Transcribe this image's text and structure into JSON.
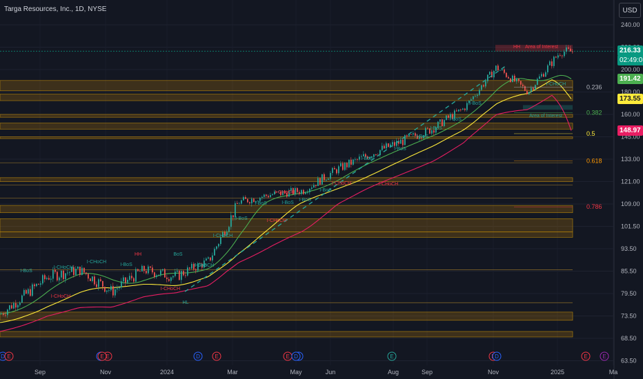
{
  "header": {
    "title": "Targa Resources, Inc., 1D, NYSE",
    "currency_button": "USD"
  },
  "price_tags": [
    {
      "label": "216.33",
      "sub": "02:49:05",
      "color": "#089981",
      "value": 216.33
    },
    {
      "label": "191.42",
      "color": "#4caf50",
      "value": 191.42
    },
    {
      "label": "173.55",
      "color": "#ffeb3b",
      "value": 173.55,
      "text_color": "#131722"
    },
    {
      "label": "148.97",
      "color": "#e91e63",
      "value": 148.97
    }
  ],
  "chart_data": {
    "type": "candlestick",
    "title": "",
    "x_ticks": [
      "Sep",
      "Nov",
      "2024",
      "Mar",
      "May",
      "Jun",
      "Aug",
      "Sep",
      "Nov",
      "2025",
      "Ma"
    ],
    "y_ticks": [
      "240.00",
      "220.00",
      "200.00",
      "180.00",
      "160.00",
      "145.00",
      "133.00",
      "121.00",
      "109.00",
      "101.50",
      "93.50",
      "85.50",
      "79.50",
      "73.50",
      "68.50",
      "63.50"
    ],
    "y_range": [
      63.5,
      240
    ],
    "close_series": [
      {
        "date": "2023-08",
        "value": 77
      },
      {
        "date": "2023-09",
        "value": 84
      },
      {
        "date": "2023-10",
        "value": 86
      },
      {
        "date": "2023-11",
        "value": 80
      },
      {
        "date": "2023-12",
        "value": 86
      },
      {
        "date": "2024-01",
        "value": 84
      },
      {
        "date": "2024-02",
        "value": 89
      },
      {
        "date": "2024-03",
        "value": 110
      },
      {
        "date": "2024-04",
        "value": 114
      },
      {
        "date": "2024-05",
        "value": 116
      },
      {
        "date": "2024-06",
        "value": 127
      },
      {
        "date": "2024-07",
        "value": 135
      },
      {
        "date": "2024-08",
        "value": 142
      },
      {
        "date": "2024-09",
        "value": 150
      },
      {
        "date": "2024-10",
        "value": 165
      },
      {
        "date": "2024-11",
        "value": 202
      },
      {
        "date": "2024-12",
        "value": 180
      },
      {
        "date": "2025-01",
        "value": 216
      }
    ],
    "moving_averages": [
      {
        "color": "#4caf50",
        "last": 191.42
      },
      {
        "color": "#ffeb3b",
        "last": 173.55
      },
      {
        "color": "#e91e63",
        "last": 148.97
      }
    ],
    "fib_levels": [
      {
        "label": "0.236",
        "value": 184,
        "color": "#b2b5be"
      },
      {
        "label": "0.382",
        "value": 161.5,
        "color": "#4caf50"
      },
      {
        "label": "0.5",
        "value": 147,
        "color": "#ffeb3b"
      },
      {
        "label": "0.618",
        "value": 132,
        "color": "#ff9800"
      },
      {
        "label": "0.786",
        "value": 108,
        "color": "#f23645"
      }
    ],
    "annotations": [
      {
        "text": "I-BoS",
        "color": "#26a69a"
      },
      {
        "text": "I-CHoCH",
        "color": "#26a69a"
      },
      {
        "text": "I-CHoCH",
        "color": "#f23645"
      },
      {
        "text": "I-BoS",
        "color": "#26a69a"
      },
      {
        "text": "I-CHoCH",
        "color": "#26a69a"
      },
      {
        "text": "HH",
        "color": "#f23645"
      },
      {
        "text": "BoS",
        "color": "#26a69a"
      },
      {
        "text": "I-BoS",
        "color": "#26a69a"
      },
      {
        "text": "I-CHoCH",
        "color": "#f23645"
      },
      {
        "text": "I-CHoCH",
        "color": "#26a69a"
      },
      {
        "text": "HL",
        "color": "#26a69a"
      },
      {
        "text": "I-BoS",
        "color": "#26a69a"
      },
      {
        "text": "I-CHoCH",
        "color": "#26a69a"
      },
      {
        "text": "I-BoS",
        "color": "#26a69a"
      },
      {
        "text": "I-CHoCH",
        "color": "#f23645"
      },
      {
        "text": "I-BoS",
        "color": "#26a69a"
      },
      {
        "text": "I-BoS",
        "color": "#26a69a"
      },
      {
        "text": "I-CHoCH",
        "color": "#f23645"
      },
      {
        "text": "I-BoS",
        "color": "#26a69a"
      },
      {
        "text": "I-CHoCH",
        "color": "#f23645"
      },
      {
        "text": "I-BoS",
        "color": "#26a69a"
      },
      {
        "text": "I-BoS",
        "color": "#26a69a"
      },
      {
        "text": "I-BoS",
        "color": "#26a69a"
      },
      {
        "text": "I-BoS",
        "color": "#26a69a"
      },
      {
        "text": "I-BoS",
        "color": "#26a69a"
      },
      {
        "text": "I-CHoCH",
        "color": "#f23645"
      },
      {
        "text": "I-BoS",
        "color": "#26a69a"
      },
      {
        "text": "I-CHoCH",
        "color": "#26a69a"
      },
      {
        "text": "HH",
        "color": "#f23645"
      },
      {
        "text": "Area of Interest",
        "color": "#f23645"
      },
      {
        "text": "Area of Interest",
        "color": "#26a69a"
      }
    ],
    "event_markers": [
      "D",
      "E",
      "D",
      "E",
      "D",
      "E",
      "E",
      "D",
      "E",
      "E",
      "D",
      "E",
      "E",
      "D",
      "E"
    ]
  }
}
